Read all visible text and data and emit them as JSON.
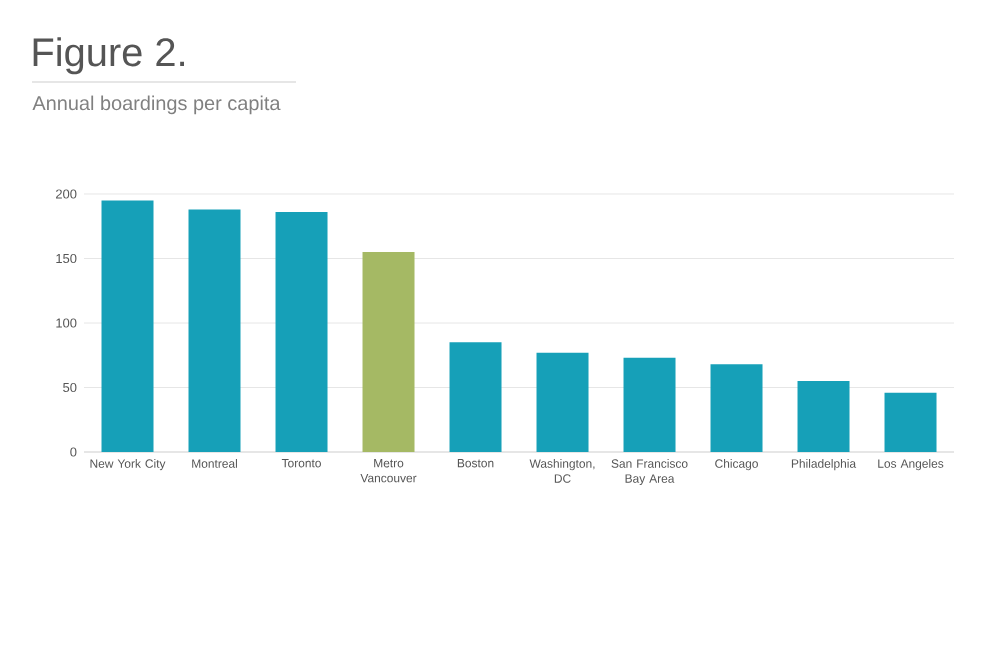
{
  "chart_data": {
    "type": "bar",
    "title": "Figure 2.",
    "subtitle": "Annual boardings per capita",
    "categories": [
      "New York City",
      "Montreal",
      "Toronto",
      "Metro Vancouver",
      "Boston",
      "Washington, DC",
      "San Francisco Bay Area",
      "Chicago",
      "Philadelphia",
      "Los Angeles"
    ],
    "values": [
      195,
      188,
      186,
      155,
      85,
      77,
      73,
      68,
      55,
      46
    ],
    "colors": [
      "#16a0b8",
      "#16a0b8",
      "#16a0b8",
      "#a5b964",
      "#16a0b8",
      "#16a0b8",
      "#16a0b8",
      "#16a0b8",
      "#16a0b8",
      "#16a0b8"
    ],
    "ylim": [
      0,
      200
    ],
    "yticks": [
      0,
      50,
      100,
      150,
      200
    ],
    "grid": "y"
  }
}
